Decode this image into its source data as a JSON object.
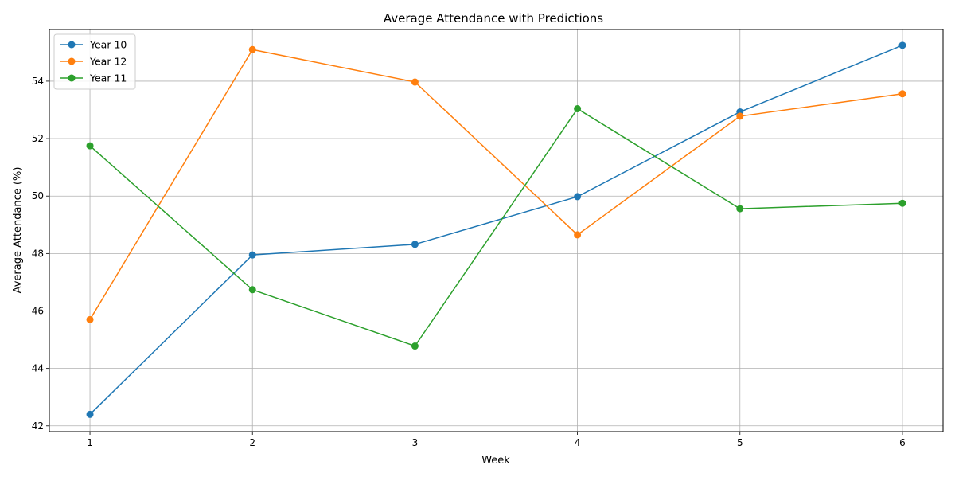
{
  "chart_data": {
    "type": "line",
    "title": "Average Attendance with Predictions",
    "xlabel": "Week",
    "ylabel": "Average Attendance (%)",
    "x": [
      1,
      2,
      3,
      4,
      5,
      6
    ],
    "x_ticks": [
      "1",
      "2",
      "3",
      "4",
      "5",
      "6"
    ],
    "y_ticks": [
      "42",
      "44",
      "46",
      "48",
      "50",
      "52",
      "54"
    ],
    "xlim": [
      0.75,
      6.25
    ],
    "ylim": [
      41.8,
      55.8
    ],
    "grid": true,
    "legend_position": "top-left",
    "series": [
      {
        "name": "Year 10",
        "color": "#1f77b4",
        "marker": "circle",
        "values": [
          42.4,
          47.95,
          48.32,
          49.98,
          52.93,
          55.25
        ]
      },
      {
        "name": "Year 12",
        "color": "#ff7f0e",
        "marker": "circle",
        "values": [
          45.7,
          55.1,
          53.97,
          48.65,
          52.78,
          53.56
        ]
      },
      {
        "name": "Year 11",
        "color": "#2ca02c",
        "marker": "circle",
        "values": [
          51.75,
          46.74,
          44.78,
          53.04,
          49.56,
          49.75
        ]
      }
    ]
  }
}
